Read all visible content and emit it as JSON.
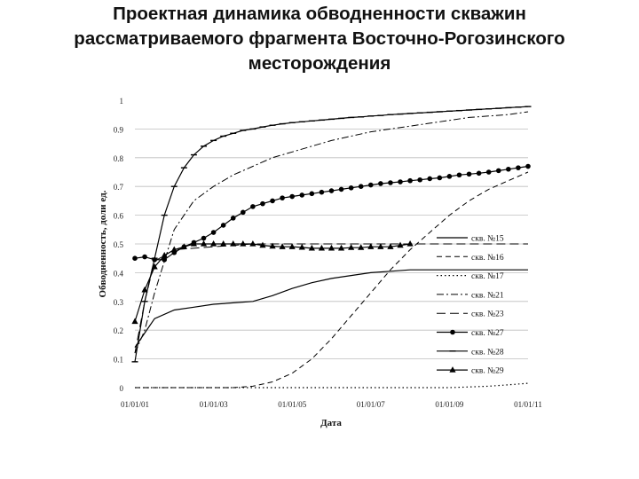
{
  "title_lines": [
    "Проектная динамика обводненности скважин",
    "рассматриваемого фрагмента Восточно-Рогозинского",
    "месторождения"
  ],
  "chart_data": {
    "type": "line",
    "title": "Проектная динамика обводненности скважин рассматриваемого фрагмента Восточно-Рогозинского месторождения",
    "xlabel": "Дата",
    "ylabel": "Обводненность, доли ед.",
    "ylim": [
      0,
      1
    ],
    "yticks": [
      0,
      0.1,
      0.2,
      0.3,
      0.4,
      0.5,
      0.6,
      0.7,
      0.8,
      0.9,
      1
    ],
    "ytick_labels": [
      "0",
      "0.1",
      "0.2",
      "0.3",
      "0.4",
      "0.5",
      "0.6",
      "0.7",
      "0.8",
      "0.9",
      "1"
    ],
    "xlim": [
      2001,
      2011
    ],
    "xticks": [
      2001,
      2003,
      2005,
      2007,
      2009,
      2011
    ],
    "xtick_labels": [
      "01/01/01",
      "01/01/03",
      "01/01/05",
      "01/01/07",
      "01/01/09",
      "01/01/11"
    ],
    "grid": true,
    "legend_position": "right",
    "series": [
      {
        "name": "скв. №15",
        "style": "solid",
        "marker": "none",
        "color": "#000000",
        "x": [
          2001,
          2001.25,
          2001.5,
          2002,
          2002.5,
          2003,
          2003.5,
          2004,
          2004.5,
          2005,
          2005.5,
          2006,
          2006.5,
          2007,
          2007.5,
          2008,
          2008.5,
          2009,
          2009.5,
          2010,
          2010.5,
          2011
        ],
        "y": [
          0.14,
          0.19,
          0.24,
          0.27,
          0.28,
          0.29,
          0.295,
          0.3,
          0.32,
          0.345,
          0.365,
          0.38,
          0.39,
          0.4,
          0.405,
          0.41,
          0.41,
          0.41,
          0.41,
          0.41,
          0.41,
          0.41
        ]
      },
      {
        "name": "скв. №16",
        "style": "dashed",
        "marker": "none",
        "color": "#000000",
        "x": [
          2001,
          2001.5,
          2002,
          2002.5,
          2003,
          2003.5,
          2004,
          2004.5,
          2005,
          2005.5,
          2006,
          2006.5,
          2007,
          2007.5,
          2008,
          2008.5,
          2009,
          2009.5,
          2010,
          2010.5,
          2011
        ],
        "y": [
          0,
          0,
          0,
          0,
          0,
          0,
          0.005,
          0.02,
          0.05,
          0.1,
          0.17,
          0.25,
          0.33,
          0.41,
          0.48,
          0.54,
          0.6,
          0.65,
          0.69,
          0.72,
          0.75
        ]
      },
      {
        "name": "скв. №17",
        "style": "dotted",
        "marker": "none",
        "color": "#000000",
        "x": [
          2001,
          2004,
          2006,
          2008,
          2009,
          2010,
          2010.5,
          2011
        ],
        "y": [
          0,
          0,
          0,
          0,
          0,
          0.005,
          0.01,
          0.015
        ]
      },
      {
        "name": "скв. №21",
        "style": "dashdot",
        "marker": "none",
        "color": "#000000",
        "x": [
          2001,
          2001.25,
          2001.5,
          2002,
          2002.5,
          2003,
          2003.5,
          2004,
          2004.5,
          2005,
          2005.5,
          2006,
          2006.5,
          2007,
          2007.5,
          2008,
          2008.5,
          2009,
          2009.5,
          2010,
          2010.5,
          2011
        ],
        "y": [
          0.12,
          0.2,
          0.33,
          0.55,
          0.65,
          0.7,
          0.74,
          0.77,
          0.8,
          0.82,
          0.84,
          0.86,
          0.875,
          0.89,
          0.9,
          0.91,
          0.92,
          0.93,
          0.94,
          0.945,
          0.95,
          0.96
        ]
      },
      {
        "name": "скв. №23",
        "style": "longdash",
        "marker": "none",
        "color": "#000000",
        "x": [
          2001,
          2001.25,
          2001.5,
          2002,
          2003,
          2004,
          2005,
          2006,
          2007,
          2008,
          2009,
          2010,
          2011
        ],
        "y": [
          0.12,
          0.3,
          0.44,
          0.48,
          0.49,
          0.5,
          0.5,
          0.5,
          0.5,
          0.5,
          0.5,
          0.5,
          0.5
        ]
      },
      {
        "name": "скв. №27",
        "style": "solid",
        "marker": "circle",
        "color": "#000000",
        "x": [
          2001,
          2001.25,
          2001.5,
          2001.75,
          2002,
          2002.25,
          2002.5,
          2002.75,
          2003,
          2003.25,
          2003.5,
          2003.75,
          2004,
          2004.25,
          2004.5,
          2004.75,
          2005,
          2005.25,
          2005.5,
          2005.75,
          2006,
          2006.25,
          2006.5,
          2006.75,
          2007,
          2007.25,
          2007.5,
          2007.75,
          2008,
          2008.25,
          2008.5,
          2008.75,
          2009,
          2009.25,
          2009.5,
          2009.75,
          2010,
          2010.25,
          2010.5,
          2010.75,
          2011
        ],
        "y": [
          0.45,
          0.455,
          0.445,
          0.445,
          0.47,
          0.49,
          0.505,
          0.52,
          0.54,
          0.565,
          0.59,
          0.61,
          0.63,
          0.64,
          0.65,
          0.66,
          0.665,
          0.67,
          0.675,
          0.68,
          0.685,
          0.69,
          0.695,
          0.7,
          0.705,
          0.71,
          0.713,
          0.716,
          0.72,
          0.723,
          0.727,
          0.73,
          0.735,
          0.74,
          0.743,
          0.746,
          0.75,
          0.755,
          0.76,
          0.765,
          0.77
        ]
      },
      {
        "name": "скв. №28",
        "style": "solid",
        "marker": "dash",
        "color": "#000000",
        "x": [
          2001,
          2001.25,
          2001.5,
          2001.75,
          2002,
          2002.25,
          2002.5,
          2002.75,
          2003,
          2003.25,
          2003.5,
          2003.75,
          2004,
          2004.25,
          2004.5,
          2004.75,
          2005,
          2005.25,
          2005.5,
          2005.75,
          2006,
          2006.25,
          2006.5,
          2006.75,
          2007,
          2007.25,
          2007.5,
          2007.75,
          2008,
          2008.25,
          2008.5,
          2008.75,
          2009,
          2009.25,
          2009.5,
          2009.75,
          2010,
          2010.25,
          2010.5,
          2010.75,
          2011
        ],
        "y": [
          0.09,
          0.3,
          0.45,
          0.6,
          0.7,
          0.765,
          0.81,
          0.84,
          0.86,
          0.875,
          0.885,
          0.895,
          0.9,
          0.907,
          0.913,
          0.918,
          0.922,
          0.925,
          0.928,
          0.931,
          0.934,
          0.937,
          0.94,
          0.942,
          0.945,
          0.947,
          0.95,
          0.952,
          0.954,
          0.956,
          0.958,
          0.96,
          0.962,
          0.964,
          0.966,
          0.968,
          0.97,
          0.972,
          0.974,
          0.976,
          0.978
        ]
      },
      {
        "name": "скв. №29",
        "style": "solid",
        "marker": "triangle",
        "color": "#000000",
        "x": [
          2001,
          2001.25,
          2001.5,
          2001.75,
          2002,
          2002.25,
          2002.5,
          2002.75,
          2003,
          2003.25,
          2003.5,
          2003.75,
          2004,
          2004.25,
          2004.5,
          2004.75,
          2005,
          2005.25,
          2005.5,
          2005.75,
          2006,
          2006.25,
          2006.5,
          2006.75,
          2007,
          2007.25,
          2007.5,
          2007.75,
          2008
        ],
        "y": [
          0.23,
          0.34,
          0.42,
          0.46,
          0.48,
          0.49,
          0.5,
          0.5,
          0.5,
          0.5,
          0.5,
          0.5,
          0.5,
          0.495,
          0.492,
          0.49,
          0.49,
          0.488,
          0.485,
          0.485,
          0.485,
          0.485,
          0.487,
          0.487,
          0.49,
          0.49,
          0.49,
          0.495,
          0.5
        ]
      }
    ]
  }
}
